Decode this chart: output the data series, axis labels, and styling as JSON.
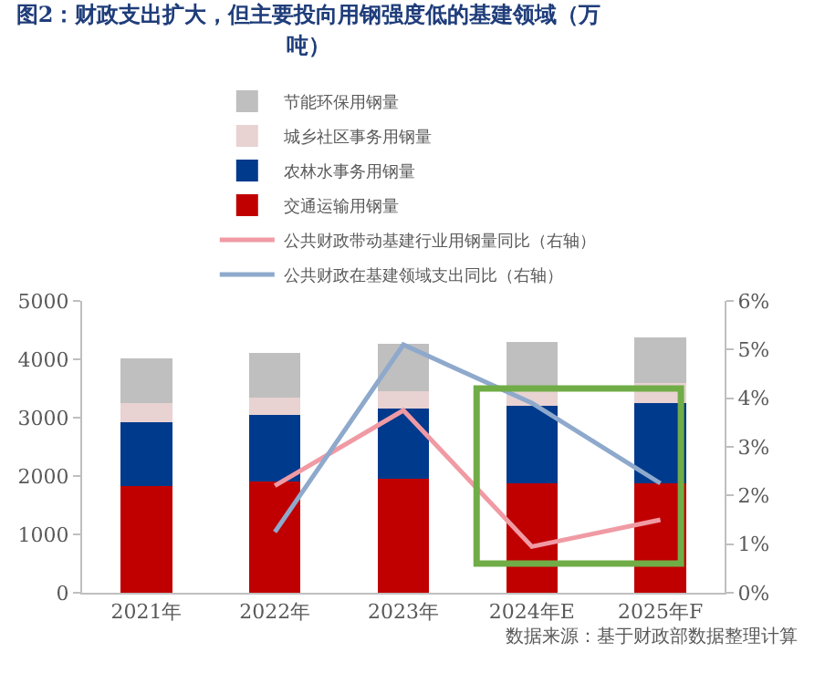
{
  "chart_data": {
    "type": "bar",
    "stacked": true,
    "title": "图2：财政支出扩大，但主要投向用钢强度低的基建领域（万吨）",
    "categories": [
      "2021年",
      "2022年",
      "2023年",
      "2024年E",
      "2025年F"
    ],
    "series": [
      {
        "name": "交通运输用钢量",
        "color": "#c00000",
        "values": [
          1830,
          1900,
          1950,
          1880,
          1880
        ]
      },
      {
        "name": "农林水事务用钢量",
        "color": "#003a8c",
        "values": [
          1090,
          1150,
          1200,
          1320,
          1370
        ]
      },
      {
        "name": "城乡社区事务用钢量",
        "color": "#e8d2d2",
        "values": [
          330,
          300,
          300,
          280,
          350
        ]
      },
      {
        "name": "节能环保用钢量",
        "color": "#bfbfbf",
        "values": [
          760,
          760,
          810,
          810,
          770
        ]
      },
      {
        "name": "公共财政带动基建行业用钢量同比（右轴）",
        "type": "line",
        "axis": "y2",
        "color": "#f09aa4",
        "values": [
          null,
          2.2,
          3.75,
          0.95,
          1.5
        ]
      },
      {
        "name": "公共财政在基建领域支出同比（右轴）",
        "type": "line",
        "axis": "y2",
        "color": "#8ea9cc",
        "values": [
          null,
          1.25,
          5.1,
          3.9,
          2.25
        ]
      }
    ],
    "ylim": [
      0,
      5000
    ],
    "yticks": [
      0,
      1000,
      2000,
      3000,
      4000,
      5000
    ],
    "y2lim": [
      0,
      6
    ],
    "y2ticks": [
      {
        "value": 0,
        "label": "0%"
      },
      {
        "value": 1,
        "label": "1%"
      },
      {
        "value": 2,
        "label": "2%"
      },
      {
        "value": 3,
        "label": "3%"
      },
      {
        "value": 4,
        "label": "4%"
      },
      {
        "value": 5,
        "label": "5%"
      },
      {
        "value": 6,
        "label": "6%"
      }
    ],
    "grid": false,
    "legend": "top",
    "marker": "none",
    "line_style": "solid",
    "annotations": [
      "数据来源：基于财政部数据整理计算"
    ]
  }
}
